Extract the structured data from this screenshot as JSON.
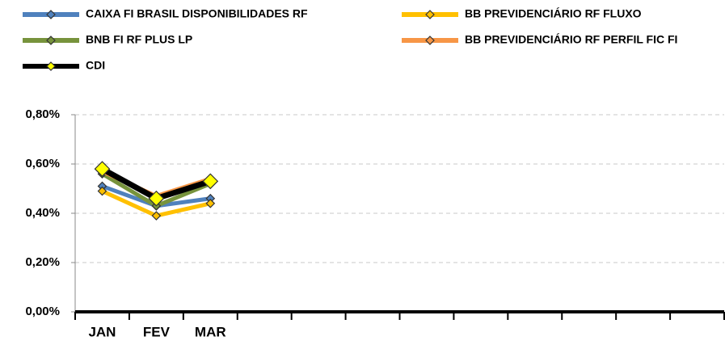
{
  "chart_data": {
    "type": "line",
    "categories": [
      "JAN",
      "FEV",
      "MAR",
      null,
      null,
      null,
      null,
      null,
      null,
      null,
      null,
      null
    ],
    "series": [
      {
        "name": "CAIXA FI BRASIL DISPONIBILIDADES RF",
        "color": "#4f81bd",
        "marker_color": "#4f81bd",
        "values": [
          0.51,
          0.43,
          0.46,
          null,
          null,
          null,
          null,
          null,
          null,
          null,
          null,
          null
        ]
      },
      {
        "name": "BB PREVIDENCIÁRIO RF FLUXO",
        "color": "#ffc000",
        "marker_color": "#ffc000",
        "values": [
          0.49,
          0.39,
          0.44,
          null,
          null,
          null,
          null,
          null,
          null,
          null,
          null,
          null
        ]
      },
      {
        "name": "BNB FI RF PLUS LP",
        "color": "#77933c",
        "marker_color": "#77933c",
        "values": [
          0.56,
          0.43,
          0.52,
          null,
          null,
          null,
          null,
          null,
          null,
          null,
          null,
          null
        ]
      },
      {
        "name": "BB PREVIDENCIÁRIO RF PERFIL FIC FI",
        "color": "#f79646",
        "marker_color": "#f79646",
        "values": [
          0.57,
          0.47,
          0.54,
          null,
          null,
          null,
          null,
          null,
          null,
          null,
          null,
          null
        ]
      },
      {
        "name": "CDI",
        "color": "#000000",
        "marker_color": "#ffff00",
        "values": [
          0.58,
          0.46,
          0.53,
          null,
          null,
          null,
          null,
          null,
          null,
          null,
          null,
          null
        ]
      }
    ],
    "ylim": [
      0,
      0.8
    ],
    "yticks": [
      {
        "value": 0,
        "label": "0,00%"
      },
      {
        "value": 0.2,
        "label": "0,20%"
      },
      {
        "value": 0.4,
        "label": "0,40%"
      },
      {
        "value": 0.6,
        "label": "0,60%"
      },
      {
        "value": 0.8,
        "label": "0,80%"
      }
    ],
    "grid": true,
    "legend": "top"
  }
}
